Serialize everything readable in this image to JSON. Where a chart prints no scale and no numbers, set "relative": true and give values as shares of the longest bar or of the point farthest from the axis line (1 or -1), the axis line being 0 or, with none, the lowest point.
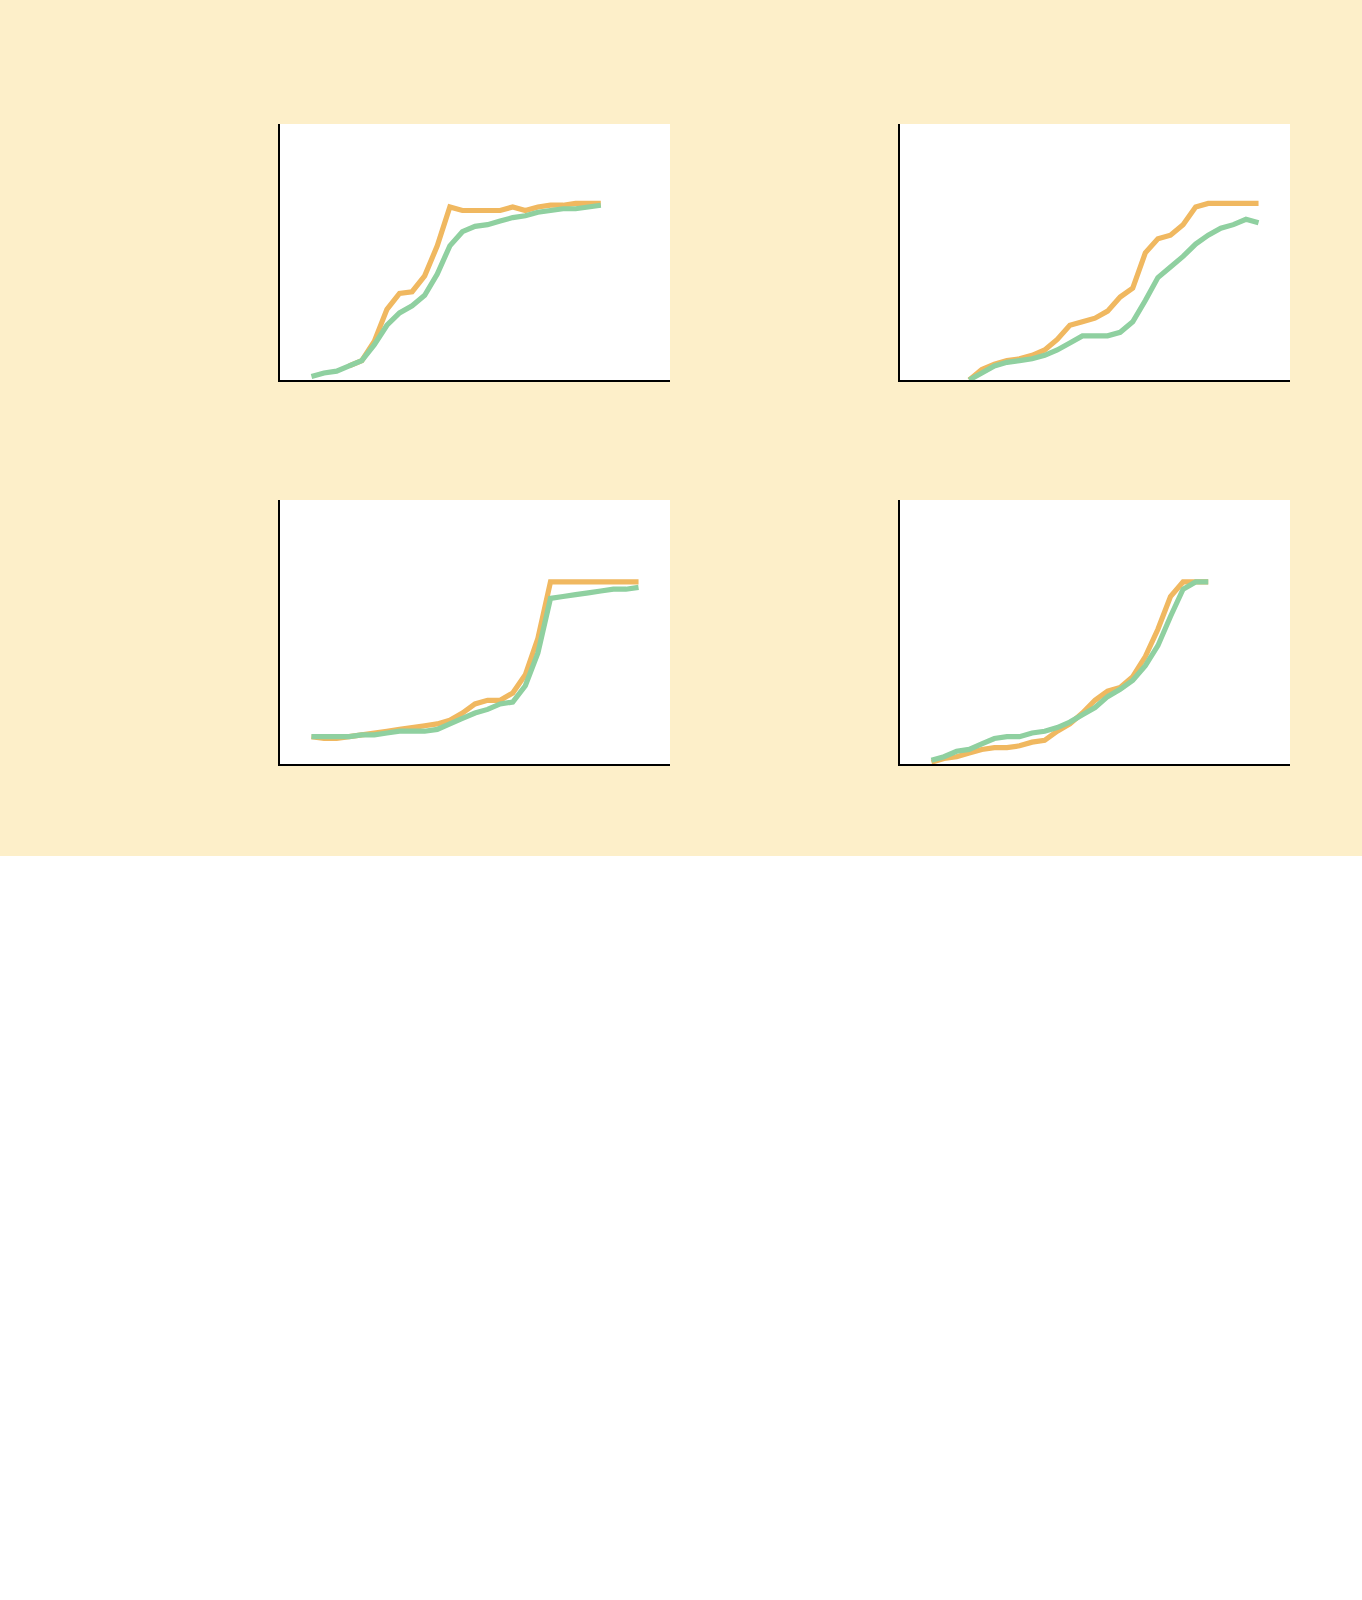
{
  "chart_data": [
    {
      "type": "line",
      "relative": true,
      "categories": [
        null,
        null,
        null,
        null,
        null,
        null,
        null,
        null,
        null,
        null,
        null,
        null,
        null,
        null,
        null,
        null,
        null,
        null,
        null,
        null,
        null,
        null,
        null,
        null,
        null,
        null,
        null,
        null,
        null,
        null,
        null
      ],
      "series": [
        {
          "color": "#f0b860",
          "values": [
            null,
            null,
            null,
            null,
            null,
            0.08,
            0.11,
            0.22,
            0.4,
            0.49,
            0.5,
            0.59,
            0.76,
            0.98,
            0.96,
            0.96,
            0.96,
            0.96,
            0.98,
            0.96,
            0.98,
            0.99,
            0.99,
            1,
            1,
            1,
            null,
            null,
            null,
            null,
            null
          ]
        },
        {
          "color": "#8fd0a0",
          "values": [
            null,
            null,
            0.02,
            0.04,
            0.05,
            0.08,
            0.11,
            0.2,
            0.31,
            0.38,
            0.42,
            0.48,
            0.6,
            0.76,
            0.84,
            0.87,
            0.88,
            0.9,
            0.92,
            0.93,
            0.95,
            0.96,
            0.97,
            0.97,
            0.98,
            0.99,
            null,
            null,
            null,
            null,
            null
          ]
        }
      ]
    },
    {
      "type": "line",
      "relative": true,
      "categories": [
        null,
        null,
        null,
        null,
        null,
        null,
        null,
        null,
        null,
        null,
        null,
        null,
        null,
        null,
        null,
        null,
        null,
        null,
        null,
        null,
        null,
        null,
        null,
        null,
        null,
        null,
        null,
        null,
        null,
        null,
        null
      ],
      "series": [
        {
          "color": "#f0b860",
          "values": [
            null,
            null,
            null,
            null,
            null,
            0,
            0.06,
            0.09,
            0.11,
            0.12,
            0.14,
            0.17,
            0.23,
            0.31,
            0.33,
            0.35,
            0.39,
            0.47,
            0.52,
            0.72,
            0.8,
            0.82,
            0.88,
            0.98,
            1,
            1,
            1,
            1,
            1,
            null,
            null
          ]
        },
        {
          "color": "#8fd0a0",
          "values": [
            null,
            null,
            null,
            null,
            null,
            0,
            0.04,
            0.08,
            0.1,
            0.11,
            0.12,
            0.14,
            0.17,
            0.21,
            0.25,
            0.25,
            0.25,
            0.27,
            0.33,
            0.45,
            0.58,
            0.64,
            0.7,
            0.77,
            0.82,
            0.86,
            0.88,
            0.91,
            0.89,
            null,
            null
          ]
        }
      ]
    },
    {
      "type": "line",
      "relative": true,
      "categories": [
        null,
        null,
        null,
        null,
        null,
        null,
        null,
        null,
        null,
        null,
        null,
        null,
        null,
        null,
        null,
        null,
        null,
        null,
        null,
        null,
        null,
        null,
        null,
        null,
        null,
        null,
        null,
        null,
        null,
        null,
        null
      ],
      "series": [
        {
          "color": "#f0b860",
          "values": [
            null,
            null,
            0.15,
            0.14,
            0.14,
            0.15,
            0.16,
            0.17,
            0.18,
            0.19,
            0.2,
            0.21,
            0.22,
            0.24,
            0.28,
            0.33,
            0.35,
            0.35,
            0.39,
            0.49,
            0.69,
            1,
            1,
            1,
            1,
            1,
            1,
            1,
            1,
            null,
            null
          ]
        },
        {
          "color": "#8fd0a0",
          "values": [
            null,
            null,
            0.15,
            0.15,
            0.15,
            0.15,
            0.16,
            0.16,
            0.17,
            0.18,
            0.18,
            0.18,
            0.19,
            0.22,
            0.25,
            0.28,
            0.3,
            0.33,
            0.34,
            0.43,
            0.61,
            0.91,
            0.92,
            0.93,
            0.94,
            0.95,
            0.96,
            0.96,
            0.97,
            null,
            null
          ]
        }
      ]
    },
    {
      "type": "line",
      "relative": true,
      "categories": [
        null,
        null,
        null,
        null,
        null,
        null,
        null,
        null,
        null,
        null,
        null,
        null,
        null,
        null,
        null,
        null,
        null,
        null,
        null,
        null,
        null,
        null,
        null,
        null,
        null,
        null,
        null,
        null,
        null,
        null,
        null
      ],
      "series": [
        {
          "color": "#f0b860",
          "values": [
            null,
            null,
            0.01,
            0.03,
            0.04,
            0.06,
            0.08,
            0.09,
            0.09,
            0.1,
            0.12,
            0.13,
            0.18,
            0.22,
            0.28,
            0.35,
            0.4,
            0.42,
            0.48,
            0.59,
            0.74,
            0.92,
            1,
            1,
            1,
            null,
            null,
            null,
            null,
            null,
            null
          ]
        },
        {
          "color": "#8fd0a0",
          "values": [
            null,
            null,
            0.02,
            0.04,
            0.07,
            0.08,
            0.11,
            0.14,
            0.15,
            0.15,
            0.17,
            0.18,
            0.2,
            0.23,
            0.27,
            0.31,
            0.37,
            0.41,
            0.46,
            0.54,
            0.65,
            0.81,
            0.96,
            1,
            1,
            null,
            null,
            null,
            null,
            null,
            null
          ]
        }
      ]
    }
  ]
}
